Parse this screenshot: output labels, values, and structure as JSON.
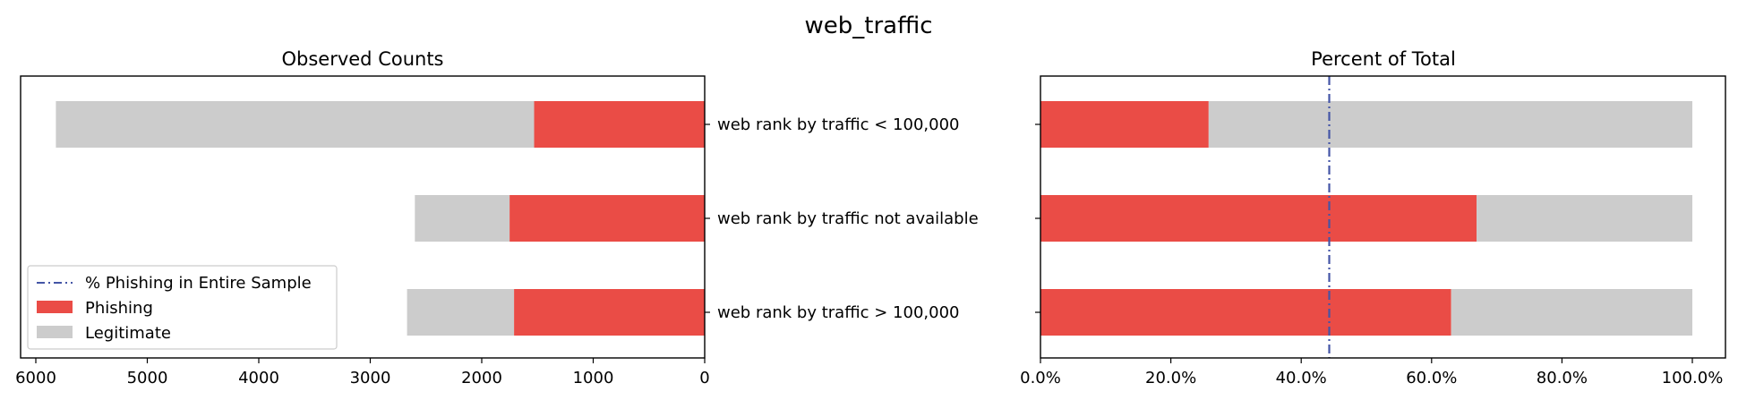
{
  "figure": {
    "title": "web_traffic"
  },
  "legend": {
    "placement": "lower-left of left panel",
    "items": [
      {
        "label": "% Phishing in Entire Sample",
        "kind": "line",
        "color": "#4455a6"
      },
      {
        "label": "Phishing",
        "kind": "patch",
        "color": "#ea4c46"
      },
      {
        "label": "Legitimate",
        "kind": "patch",
        "color": "#cccccc"
      }
    ]
  },
  "colors": {
    "phishing": "#ea4c46",
    "legitimate": "#cccccc",
    "reference_line": "#4455a6"
  },
  "chart_data": [
    {
      "type": "bar",
      "orientation": "horizontal",
      "stacked": true,
      "title": "Observed Counts",
      "x_inverted": true,
      "xlim": [
        6000,
        0
      ],
      "xticks": [
        "6000",
        "5000",
        "4000",
        "3000",
        "2000",
        "1000",
        "0"
      ],
      "categories": [
        "web rank by traffic < 100,000",
        "web rank by traffic not available",
        "web rank by traffic > 100,000"
      ],
      "series": [
        {
          "name": "Phishing",
          "values": [
            1530,
            1750,
            1710
          ]
        },
        {
          "name": "Legitimate",
          "values": [
            4290,
            850,
            960
          ]
        }
      ]
    },
    {
      "type": "bar",
      "orientation": "horizontal",
      "stacked": true,
      "title": "Percent of Total",
      "xlim": [
        0,
        100
      ],
      "xticks": [
        "0.0%",
        "20.0%",
        "40.0%",
        "60.0%",
        "80.0%",
        "100.0%"
      ],
      "categories": [
        "web rank by traffic < 100,000",
        "web rank by traffic not available",
        "web rank by traffic > 100,000"
      ],
      "series": [
        {
          "name": "Phishing",
          "values": [
            25.8,
            66.9,
            63.0
          ]
        },
        {
          "name": "Legitimate",
          "values": [
            74.2,
            33.1,
            37.0
          ]
        }
      ],
      "reference_line": {
        "name": "% Phishing in Entire Sample",
        "value": 44.3
      }
    }
  ]
}
